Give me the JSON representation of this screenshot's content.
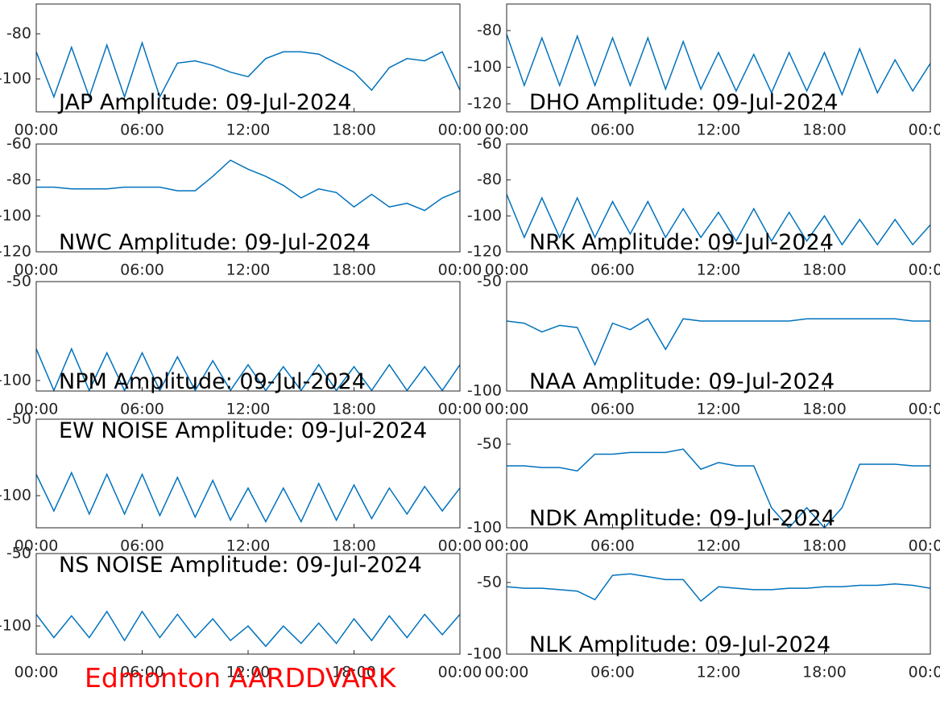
{
  "footer": "Edmonton AARDDVARK",
  "chart_data": [
    {
      "type": "line",
      "title": "JAP Amplitude: 09-Jul-2024",
      "x": [
        0,
        1,
        2,
        3,
        4,
        5,
        6,
        7,
        8,
        9,
        10,
        11,
        12,
        13,
        14,
        15,
        16,
        17,
        18,
        19,
        20,
        21,
        22,
        23,
        24
      ],
      "series": [
        {
          "color": "#0072bd",
          "values": [
            -88,
            -108,
            -86,
            -108,
            -85,
            -108,
            -84,
            -108,
            -93,
            -92,
            -94,
            -97,
            -99,
            -91,
            -88,
            -88,
            -89,
            -93,
            -97,
            -105,
            -95,
            -91,
            -92,
            -88,
            -105
          ]
        }
      ],
      "xlim": [
        0,
        24
      ],
      "xticks": [
        {
          "value": 0,
          "label": "00:00"
        },
        {
          "value": 6,
          "label": "06:00"
        },
        {
          "value": 12,
          "label": "12:00"
        },
        {
          "value": 18,
          "label": "18:00"
        },
        {
          "value": 24,
          "label": "00:00"
        }
      ],
      "ylim": [
        -114.6,
        -66.8
      ],
      "yticks": [
        -80,
        -100
      ]
    },
    {
      "type": "line",
      "title": "DHO Amplitude: 09-Jul-2024",
      "x": [
        0,
        1,
        2,
        3,
        4,
        5,
        6,
        7,
        8,
        9,
        10,
        11,
        12,
        13,
        14,
        15,
        16,
        17,
        18,
        19,
        20,
        21,
        22,
        23,
        24
      ],
      "series": [
        {
          "color": "#0072bd",
          "values": [
            -82,
            -110,
            -84,
            -110,
            -83,
            -110,
            -84,
            -110,
            -84,
            -112,
            -86,
            -112,
            -92,
            -113,
            -93,
            -114,
            -92,
            -113,
            -92,
            -115,
            -90,
            -114,
            -96,
            -113,
            -98
          ]
        }
      ],
      "xlim": [
        0,
        24
      ],
      "xticks": [
        {
          "value": 0,
          "label": "00:00"
        },
        {
          "value": 6,
          "label": "06:00"
        },
        {
          "value": 12,
          "label": "12:00"
        },
        {
          "value": 18,
          "label": "18:00"
        },
        {
          "value": 24,
          "label": "00:00"
        }
      ],
      "ylim": [
        -124.4,
        -65.5
      ],
      "yticks": [
        -80,
        -100,
        -120
      ]
    },
    {
      "type": "line",
      "title": "NWC Amplitude: 09-Jul-2024",
      "x": [
        0,
        1,
        2,
        3,
        4,
        5,
        6,
        7,
        8,
        9,
        10,
        11,
        12,
        13,
        14,
        15,
        16,
        17,
        18,
        19,
        20,
        21,
        22,
        23,
        24
      ],
      "series": [
        {
          "color": "#0072bd",
          "values": [
            -84,
            -84,
            -85,
            -85,
            -85,
            -84,
            -84,
            -84,
            -86,
            -86,
            -78,
            -69,
            -74,
            -78,
            -83,
            -90,
            -85,
            -87,
            -95,
            -88,
            -95,
            -93,
            -97,
            -90,
            -86
          ]
        }
      ],
      "xlim": [
        0,
        24
      ],
      "xticks": [
        {
          "value": 0,
          "label": "00:00"
        },
        {
          "value": 6,
          "label": "06:00"
        },
        {
          "value": 12,
          "label": "12:00"
        },
        {
          "value": 18,
          "label": "18:00"
        },
        {
          "value": 24,
          "label": "00:00"
        }
      ],
      "ylim": [
        -120,
        -60
      ],
      "yticks": [
        -60,
        -80,
        -100,
        -120
      ]
    },
    {
      "type": "line",
      "title": "NRK Amplitude: 09-Jul-2024",
      "x": [
        0,
        1,
        2,
        3,
        4,
        5,
        6,
        7,
        8,
        9,
        10,
        11,
        12,
        13,
        14,
        15,
        16,
        17,
        18,
        19,
        20,
        21,
        22,
        23,
        24
      ],
      "series": [
        {
          "color": "#0072bd",
          "values": [
            -88,
            -112,
            -90,
            -112,
            -90,
            -112,
            -92,
            -110,
            -92,
            -112,
            -96,
            -112,
            -98,
            -114,
            -96,
            -114,
            -98,
            -114,
            -100,
            -116,
            -102,
            -116,
            -102,
            -116,
            -105
          ]
        }
      ],
      "xlim": [
        0,
        24
      ],
      "xticks": [
        {
          "value": 0,
          "label": "00:00"
        },
        {
          "value": 6,
          "label": "06:00"
        },
        {
          "value": 12,
          "label": "12:00"
        },
        {
          "value": 18,
          "label": "18:00"
        },
        {
          "value": 24,
          "label": "00:00"
        }
      ],
      "ylim": [
        -120,
        -60
      ],
      "yticks": [
        -60,
        -80,
        -100,
        -120
      ]
    },
    {
      "type": "line",
      "title": "NPM Amplitude: 09-Jul-2024",
      "x": [
        0,
        1,
        2,
        3,
        4,
        5,
        6,
        7,
        8,
        9,
        10,
        11,
        12,
        13,
        14,
        15,
        16,
        17,
        18,
        19,
        20,
        21,
        22,
        23,
        24
      ],
      "series": [
        {
          "color": "#0072bd",
          "values": [
            -84,
            -105,
            -84,
            -105,
            -86,
            -105,
            -86,
            -105,
            -88,
            -105,
            -90,
            -105,
            -92,
            -105,
            -93,
            -105,
            -92,
            -105,
            -93,
            -105,
            -92,
            -105,
            -93,
            -105,
            -92
          ]
        }
      ],
      "xlim": [
        0,
        24
      ],
      "xticks": [
        {
          "value": 0,
          "label": "00:00"
        },
        {
          "value": 6,
          "label": "06:00"
        },
        {
          "value": 12,
          "label": "12:00"
        },
        {
          "value": 18,
          "label": "18:00"
        },
        {
          "value": 24,
          "label": "00:00"
        }
      ],
      "ylim": [
        -105.3,
        -50
      ],
      "yticks": [
        -50,
        -100
      ]
    },
    {
      "type": "line",
      "title": "NAA Amplitude: 09-Jul-2024",
      "x": [
        0,
        1,
        2,
        3,
        4,
        5,
        6,
        7,
        8,
        9,
        10,
        11,
        12,
        13,
        14,
        15,
        16,
        17,
        18,
        19,
        20,
        21,
        22,
        23,
        24
      ],
      "series": [
        {
          "color": "#0072bd",
          "values": [
            -68,
            -69,
            -73,
            -70,
            -71,
            -88,
            -69,
            -72,
            -67,
            -81,
            -67,
            -68,
            -68,
            -68,
            -68,
            -68,
            -68,
            -67,
            -67,
            -67,
            -67,
            -67,
            -67,
            -68,
            -68
          ]
        }
      ],
      "xlim": [
        0,
        24
      ],
      "xticks": [
        {
          "value": 0,
          "label": "00:00"
        },
        {
          "value": 6,
          "label": "06:00"
        },
        {
          "value": 12,
          "label": "12:00"
        },
        {
          "value": 18,
          "label": "18:00"
        },
        {
          "value": 24,
          "label": "00:00"
        }
      ],
      "ylim": [
        -100,
        -50
      ],
      "yticks": [
        -50,
        -100
      ]
    },
    {
      "type": "line",
      "title": "EW NOISE Amplitude: 09-Jul-2024",
      "x": [
        0,
        1,
        2,
        3,
        4,
        5,
        6,
        7,
        8,
        9,
        10,
        11,
        12,
        13,
        14,
        15,
        16,
        17,
        18,
        19,
        20,
        21,
        22,
        23,
        24
      ],
      "series": [
        {
          "color": "#0072bd",
          "values": [
            -86,
            -110,
            -85,
            -112,
            -86,
            -112,
            -86,
            -113,
            -88,
            -114,
            -90,
            -116,
            -95,
            -117,
            -95,
            -117,
            -92,
            -116,
            -93,
            -115,
            -95,
            -112,
            -94,
            -110,
            -95
          ]
        }
      ],
      "xlim": [
        0,
        24
      ],
      "xticks": [
        {
          "value": 0,
          "label": "00:00"
        },
        {
          "value": 6,
          "label": "06:00"
        },
        {
          "value": 12,
          "label": "12:00"
        },
        {
          "value": 18,
          "label": "18:00"
        },
        {
          "value": 24,
          "label": "00:00"
        }
      ],
      "ylim": [
        -121,
        -50
      ],
      "yticks": [
        -50,
        -100
      ]
    },
    {
      "type": "line",
      "title": "NDK Amplitude: 09-Jul-2024",
      "x": [
        0,
        1,
        2,
        3,
        4,
        5,
        6,
        7,
        8,
        9,
        10,
        11,
        12,
        13,
        14,
        15,
        16,
        17,
        18,
        19,
        20,
        21,
        22,
        23,
        24
      ],
      "series": [
        {
          "color": "#0072bd",
          "values": [
            -63,
            -63,
            -64,
            -64,
            -66,
            -56,
            -56,
            -55,
            -55,
            -55,
            -53,
            -65,
            -61,
            -63,
            -63,
            -88,
            -100,
            -88,
            -100,
            -88,
            -62,
            -62,
            -62,
            -63,
            -63
          ]
        }
      ],
      "xlim": [
        0,
        24
      ],
      "xticks": [
        {
          "value": 0,
          "label": "00:00"
        },
        {
          "value": 6,
          "label": "06:00"
        },
        {
          "value": 12,
          "label": "12:00"
        },
        {
          "value": 18,
          "label": "18:00"
        },
        {
          "value": 24,
          "label": "00:00"
        }
      ],
      "ylim": [
        -100,
        -35.1
      ],
      "yticks": [
        -50,
        -100
      ]
    },
    {
      "type": "line",
      "title": "NS NOISE Amplitude: 09-Jul-2024",
      "x": [
        0,
        1,
        2,
        3,
        4,
        5,
        6,
        7,
        8,
        9,
        10,
        11,
        12,
        13,
        14,
        15,
        16,
        17,
        18,
        19,
        20,
        21,
        22,
        23,
        24
      ],
      "series": [
        {
          "color": "#0072bd",
          "values": [
            -92,
            -108,
            -93,
            -108,
            -90,
            -110,
            -90,
            -108,
            -92,
            -108,
            -95,
            -110,
            -100,
            -114,
            -100,
            -112,
            -98,
            -112,
            -95,
            -110,
            -93,
            -108,
            -92,
            -106,
            -92
          ]
        }
      ],
      "xlim": [
        0,
        24
      ],
      "xticks": [
        {
          "value": 0,
          "label": "00:00"
        },
        {
          "value": 6,
          "label": "06:00"
        },
        {
          "value": 12,
          "label": "12:00"
        },
        {
          "value": 18,
          "label": "18:00"
        },
        {
          "value": 24,
          "label": "00:00"
        }
      ],
      "ylim": [
        -119.4,
        -50
      ],
      "yticks": [
        -50,
        -100
      ]
    },
    {
      "type": "line",
      "title": "NLK Amplitude: 09-Jul-2024",
      "x": [
        0,
        1,
        2,
        3,
        4,
        5,
        6,
        7,
        8,
        9,
        10,
        11,
        12,
        13,
        14,
        15,
        16,
        17,
        18,
        19,
        20,
        21,
        22,
        23,
        24
      ],
      "series": [
        {
          "color": "#0072bd",
          "values": [
            -53,
            -54,
            -54,
            -55,
            -56,
            -62,
            -45,
            -44,
            -46,
            -48,
            -48,
            -63,
            -53,
            -54,
            -55,
            -55,
            -54,
            -54,
            -53,
            -53,
            -52,
            -52,
            -51,
            -52,
            -54
          ]
        }
      ],
      "xlim": [
        0,
        24
      ],
      "xticks": [
        {
          "value": 0,
          "label": "00:00"
        },
        {
          "value": 6,
          "label": "06:00"
        },
        {
          "value": 12,
          "label": "12:00"
        },
        {
          "value": 18,
          "label": "18:00"
        },
        {
          "value": 24,
          "label": "00:00"
        }
      ],
      "ylim": [
        -100,
        -29.8
      ],
      "yticks": [
        -50,
        -100
      ]
    }
  ]
}
